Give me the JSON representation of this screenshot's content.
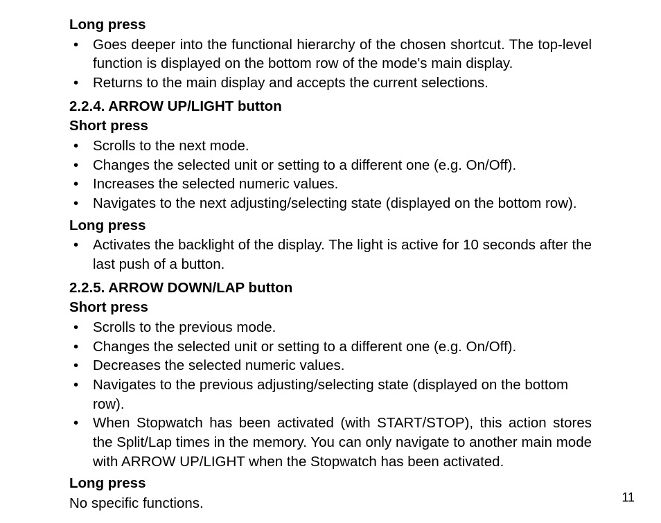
{
  "text_color": "#000000",
  "background_color": "#ffffff",
  "font_family": "Arial, Helvetica, sans-serif",
  "base_font_size_pt": 15,
  "bullet_char": "•",
  "block1": {
    "heading": "Long press",
    "items": [
      "Goes deeper into the functional hierarchy of the chosen shortcut. The top-level function is displayed on the bottom row of the mode's main display.",
      "Returns to the main display and accepts the current selections."
    ]
  },
  "section224": {
    "heading": "2.2.4. ARROW UP/LIGHT button",
    "short": {
      "heading": "Short press",
      "items": [
        "Scrolls to the next mode.",
        "Changes the selected unit or setting to a different one (e.g. On/Off).",
        "Increases the selected numeric values.",
        "Navigates to the next adjusting/selecting state (displayed on the bottom row)."
      ]
    },
    "long": {
      "heading": "Long press",
      "items": [
        "Activates the backlight of the display. The light is active for 10 seconds after the last push of a button."
      ]
    }
  },
  "section225": {
    "heading": "2.2.5. ARROW DOWN/LAP button",
    "short": {
      "heading": "Short press",
      "items": [
        "Scrolls to the previous mode.",
        "Changes the selected unit or setting to a different one (e.g. On/Off).",
        "Decreases the selected numeric values.",
        "Navigates to the previous adjusting/selecting state (displayed on the bottom row).",
        "When Stopwatch has been activated (with START/STOP), this action stores the Split/Lap times in the memory. You can only navigate to another main mode with ARROW UP/LIGHT when the Stopwatch has been activated."
      ]
    },
    "long": {
      "heading": "Long press",
      "text": "No specific functions."
    }
  },
  "page_number": "11"
}
